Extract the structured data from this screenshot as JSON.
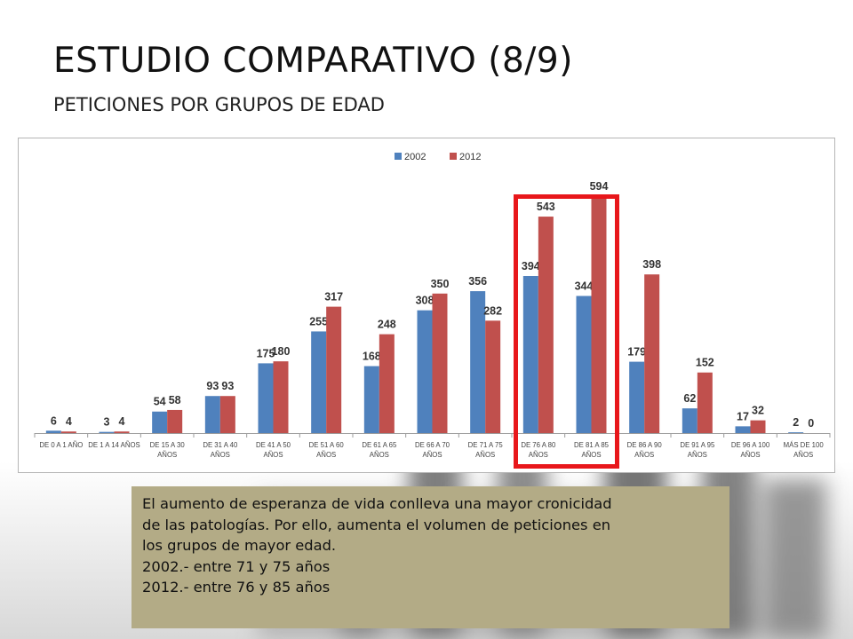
{
  "slide": {
    "title": "ESTUDIO COMPARATIVO (8/9)",
    "subtitle": "PETICIONES POR GRUPOS DE EDAD"
  },
  "chart_data": {
    "type": "bar",
    "categories": [
      [
        "DE 0 A 1 AÑO"
      ],
      [
        "DE 1 A 14 AÑOS"
      ],
      [
        "DE 15 A 30",
        "AÑOS"
      ],
      [
        "DE 31 A 40",
        "AÑOS"
      ],
      [
        "DE 41 A 50",
        "AÑOS"
      ],
      [
        "DE 51 A 60",
        "AÑOS"
      ],
      [
        "DE 61 A 65",
        "AÑOS"
      ],
      [
        "DE 66 A 70",
        "AÑOS"
      ],
      [
        "DE 71 A 75",
        "AÑOS"
      ],
      [
        "DE 76 A 80",
        "AÑOS"
      ],
      [
        "DE 81 A 85",
        "AÑOS"
      ],
      [
        "DE 86 A 90",
        "AÑOS"
      ],
      [
        "DE 91 A 95",
        "AÑOS"
      ],
      [
        "DE 96 A 100",
        "AÑOS"
      ],
      [
        "MÁS DE 100",
        "AÑOS"
      ]
    ],
    "series": [
      {
        "name": "2002",
        "color": "#4f81bd",
        "values": [
          6,
          3,
          54,
          93,
          175,
          255,
          168,
          308,
          356,
          394,
          344,
          179,
          62,
          17,
          2
        ]
      },
      {
        "name": "2012",
        "color": "#c0504d",
        "values": [
          4,
          4,
          58,
          93,
          180,
          317,
          248,
          350,
          282,
          543,
          594,
          398,
          152,
          32,
          0
        ]
      }
    ],
    "ylim": [
      0,
      650
    ],
    "legend_position": "top-center",
    "grid": false,
    "highlighted_categories": [
      "DE 76 A 80 AÑOS",
      "DE 81 A 85 AÑOS"
    ],
    "highlight_color": "#e8171b"
  },
  "note": {
    "lines": [
      "El aumento de esperanza de vida conlleva una mayor cronicidad",
      "de las patologías. Por ello, aumenta el volumen de peticiones en",
      "los grupos de mayor edad.",
      "2002.-  entre 71 y 75 años",
      "2012.- entre 76 y 85 años"
    ]
  }
}
